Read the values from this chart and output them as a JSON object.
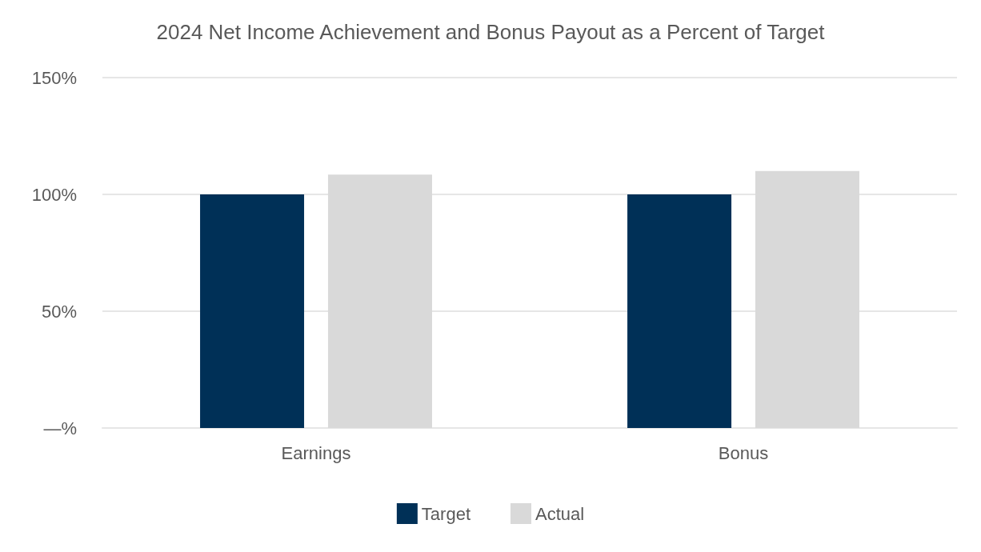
{
  "chart_data": {
    "type": "bar",
    "title": "2024 Net Income Achievement and Bonus Payout as a Percent of Target",
    "categories": [
      "Earnings",
      "Bonus"
    ],
    "series": [
      {
        "name": "Target",
        "color": "#003057",
        "values": [
          100,
          100
        ]
      },
      {
        "name": "Actual",
        "color": "#d9d9d9",
        "values": [
          108.5,
          110
        ]
      }
    ],
    "ylim": [
      0,
      150
    ],
    "yticks": [
      {
        "value": 0,
        "label": "—%"
      },
      {
        "value": 50,
        "label": "50%"
      },
      {
        "value": 100,
        "label": "100%"
      },
      {
        "value": 150,
        "label": "150%"
      }
    ],
    "grid": "y",
    "legend": "bottom"
  }
}
